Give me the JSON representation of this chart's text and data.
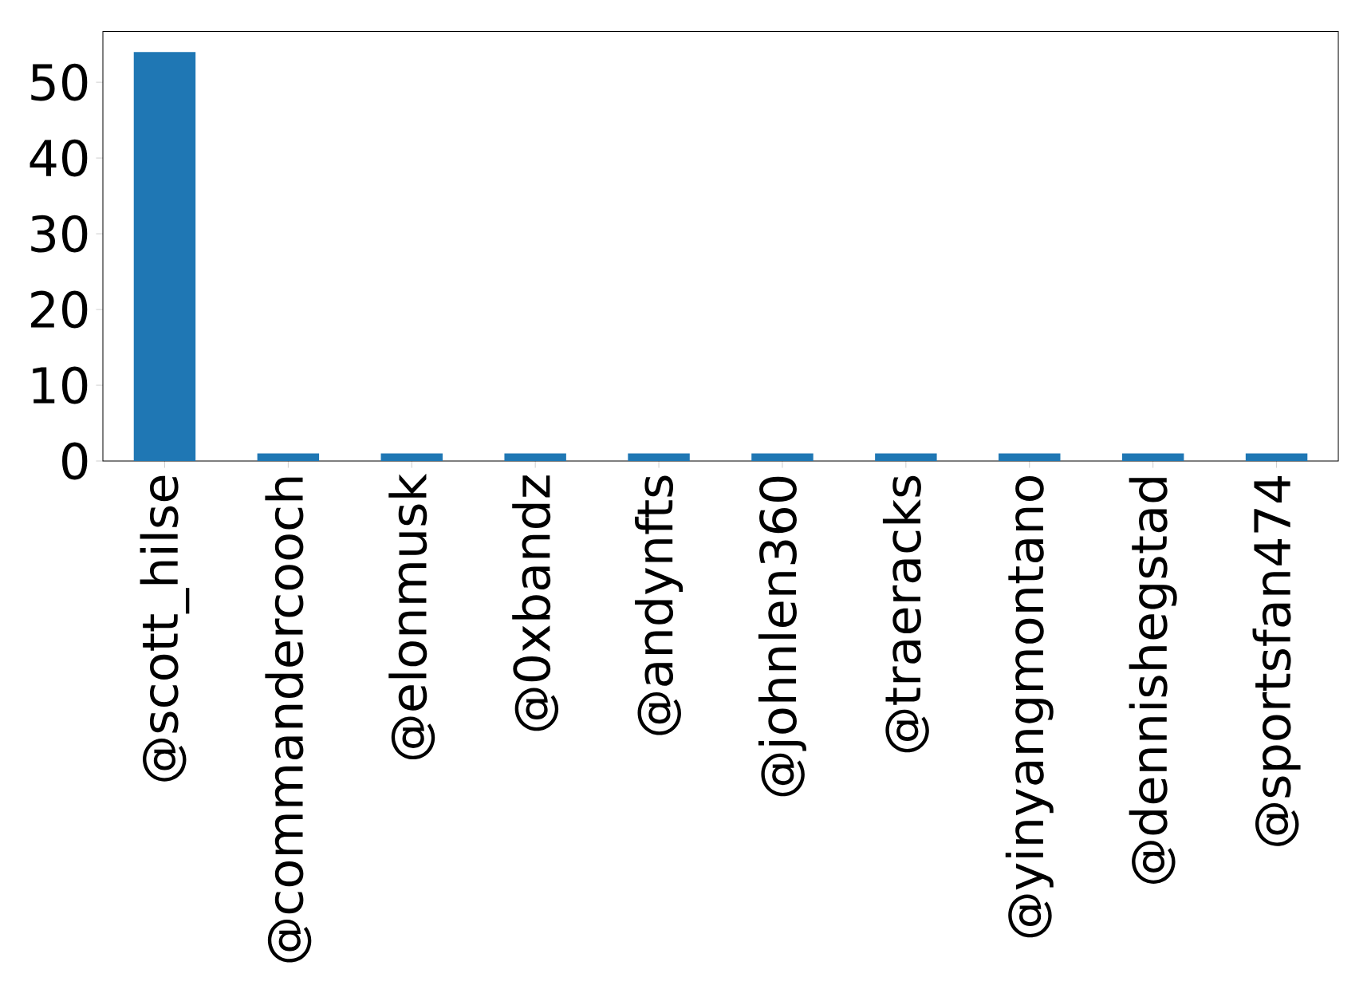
{
  "chart_data": {
    "type": "bar",
    "categories": [
      "@scott_hilse",
      "@commandercooch",
      "@elonmusk",
      "@0xbandz",
      "@andynfts",
      "@johnlen360",
      "@traeracks",
      "@yinyangmontano",
      "@dennishegstad",
      "@sportsfan474"
    ],
    "values": [
      54,
      1,
      1,
      1,
      1,
      1,
      1,
      1,
      1,
      1
    ],
    "color": "#1f77b4",
    "ylim": [
      0,
      56.7
    ],
    "yticks": [
      0,
      10,
      20,
      30,
      40,
      50
    ],
    "grid": false
  }
}
